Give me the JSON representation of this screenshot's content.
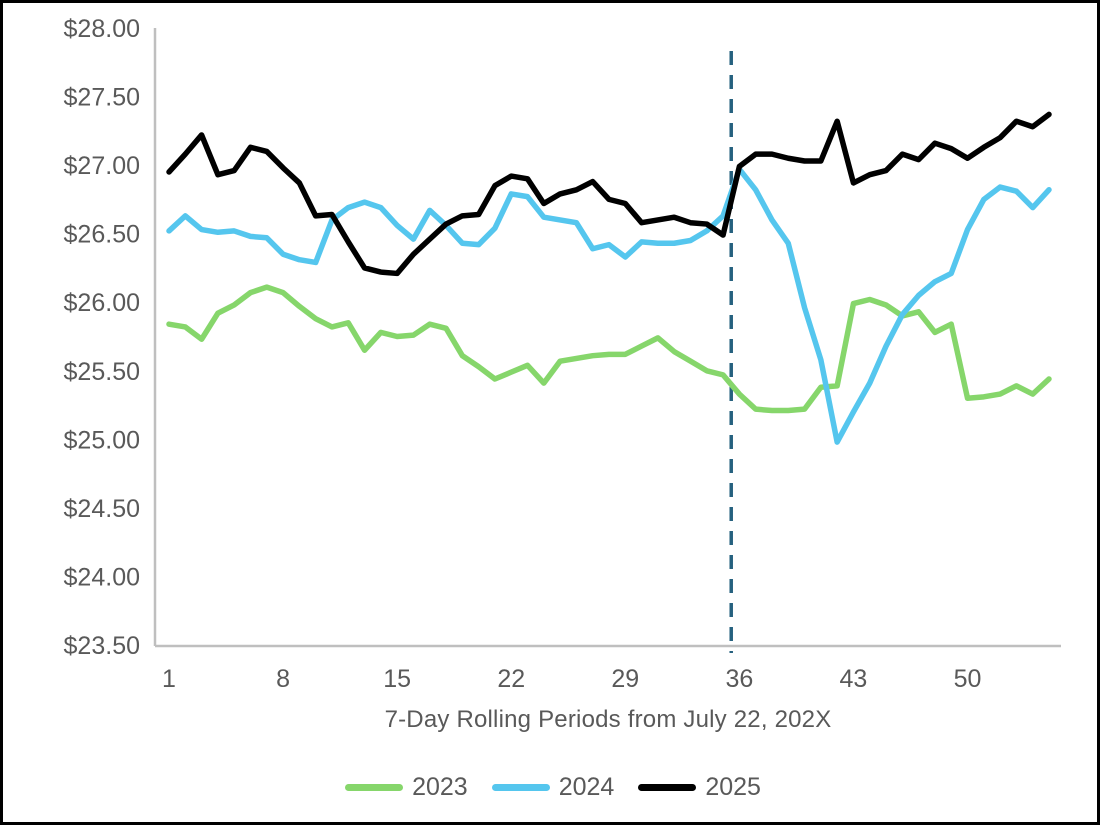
{
  "chart_data": {
    "type": "line",
    "title": "",
    "xlabel": "7-Day Rolling Periods from July 22, 202X",
    "ylabel": "",
    "x_range": [
      1,
      55
    ],
    "x_axis": {
      "ticks": [
        1,
        8,
        15,
        22,
        29,
        36,
        43,
        50
      ]
    },
    "y_axis": {
      "min": 23.5,
      "max": 28.0,
      "tick_step": 0.5,
      "tick_values": [
        28.0,
        27.5,
        27.0,
        26.5,
        26.0,
        25.5,
        25.0,
        24.5,
        24.0,
        23.5
      ],
      "tick_labels": [
        "$28.00",
        "$27.50",
        "$27.00",
        "$26.50",
        "$26.00",
        "$25.50",
        "$25.00",
        "$24.50",
        "$24.00",
        "$23.50"
      ]
    },
    "grid": false,
    "legend_position": "bottom",
    "annotation": {
      "kind": "dashed-vertical-line",
      "x_period": 35.5,
      "color": "#26617F"
    },
    "series": [
      {
        "name": "2023",
        "color": "#86D66B",
        "values": [
          25.84,
          25.82,
          25.73,
          25.92,
          25.98,
          26.07,
          26.11,
          26.07,
          25.97,
          25.88,
          25.82,
          25.85,
          25.65,
          25.78,
          25.75,
          25.76,
          25.84,
          25.81,
          25.61,
          25.53,
          25.44,
          25.49,
          25.54,
          25.41,
          25.57,
          25.59,
          25.61,
          25.62,
          25.62,
          25.68,
          25.74,
          25.64,
          25.57,
          25.5,
          25.47,
          25.33,
          25.22,
          25.21,
          25.21,
          25.22,
          25.38,
          25.39,
          25.99,
          26.02,
          25.98,
          25.9,
          25.93,
          25.78,
          25.84,
          25.3,
          25.31,
          25.33,
          25.39,
          25.33,
          25.44
        ]
      },
      {
        "name": "2024",
        "color": "#55C6EE",
        "values": [
          26.52,
          26.63,
          26.53,
          26.51,
          26.52,
          26.48,
          26.47,
          26.35,
          26.31,
          26.29,
          26.6,
          26.69,
          26.73,
          26.69,
          26.56,
          26.46,
          26.67,
          26.56,
          26.43,
          26.42,
          26.54,
          26.79,
          26.77,
          26.62,
          26.6,
          26.58,
          26.39,
          26.42,
          26.33,
          26.44,
          26.43,
          26.43,
          26.45,
          26.52,
          26.63,
          26.97,
          26.82,
          26.6,
          26.43,
          25.96,
          25.58,
          24.98,
          25.2,
          25.41,
          25.68,
          25.91,
          26.05,
          26.15,
          26.21,
          26.53,
          26.75,
          26.84,
          26.81,
          26.69,
          26.82
        ]
      },
      {
        "name": "2025",
        "color": "#000000",
        "values": [
          26.95,
          27.08,
          27.22,
          26.93,
          26.96,
          27.13,
          27.1,
          26.98,
          26.87,
          26.63,
          26.64,
          26.44,
          26.25,
          26.22,
          26.21,
          26.35,
          26.46,
          26.57,
          26.63,
          26.64,
          26.85,
          26.92,
          26.9,
          26.72,
          26.79,
          26.82,
          26.88,
          26.75,
          26.72,
          26.58,
          26.6,
          26.62,
          26.58,
          26.57,
          26.49,
          26.99,
          27.08,
          27.08,
          27.05,
          27.03,
          27.03,
          27.32,
          26.87,
          26.93,
          26.96,
          27.08,
          27.04,
          27.16,
          27.12,
          27.05,
          27.13,
          27.2,
          27.32,
          27.28,
          27.37
        ]
      }
    ],
    "colors": {
      "axis_line": "#BFBFBF",
      "tick_text": "#595959",
      "annotation_line": "#26617F"
    }
  }
}
